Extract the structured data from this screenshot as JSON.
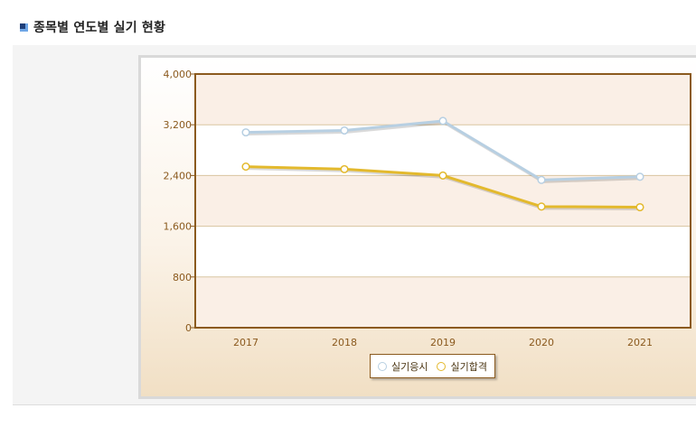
{
  "section": {
    "title": "종목별 연도별 실기 현황"
  },
  "colors": {
    "series1": "#b7cfe2",
    "series2": "#e3b92d",
    "plot_border": "#8b5a1e",
    "tick_text": "#8b5a1e",
    "grid": "#d9c5a0"
  },
  "chart_data": {
    "type": "line",
    "title": "",
    "xlabel": "",
    "ylabel": "",
    "categories": [
      "2017",
      "2018",
      "2019",
      "2020",
      "2021"
    ],
    "ylim": [
      0,
      4000
    ],
    "yticks": [
      0,
      800,
      1600,
      2400,
      3200,
      4000
    ],
    "ytick_labels": [
      "0",
      "800",
      "1,600",
      "2,400",
      "3,200",
      "4,000"
    ],
    "grid": true,
    "legend_position": "bottom-center",
    "series": [
      {
        "name": "실기응시",
        "values": [
          3080,
          3110,
          3260,
          2330,
          2380
        ]
      },
      {
        "name": "실기합격",
        "values": [
          2540,
          2500,
          2400,
          1910,
          1900
        ]
      }
    ]
  }
}
